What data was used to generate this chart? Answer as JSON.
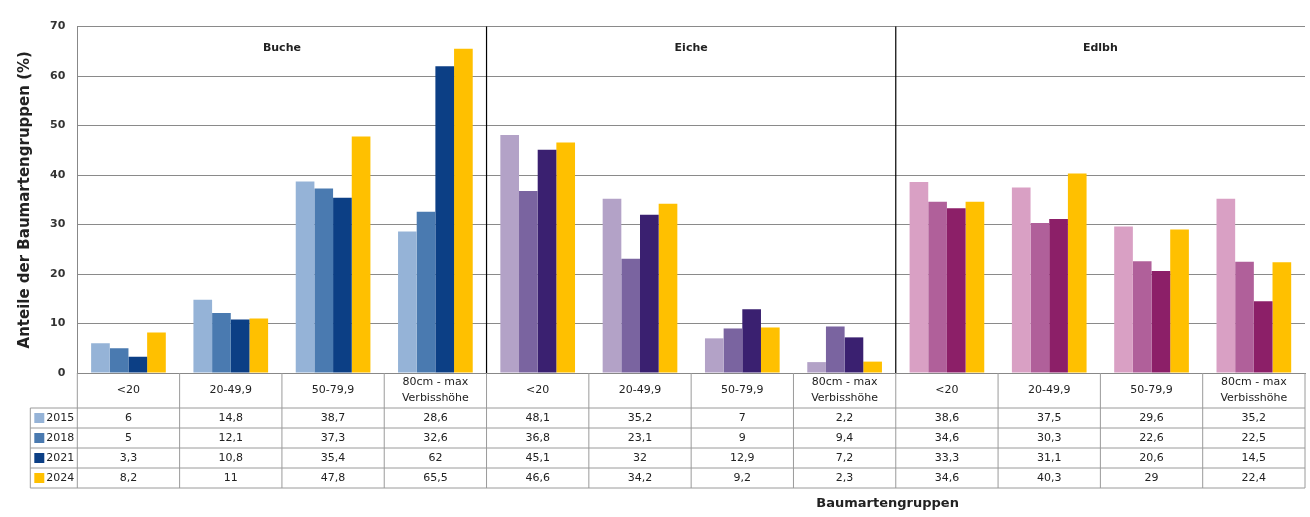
{
  "chart_data": {
    "type": "bar",
    "ylabel": "Anteile der Baumartengruppen (%)",
    "categories": [
      "<20",
      "20-49,9",
      "50-79,9",
      "80cm - max Verbisshöhe",
      "<20",
      "20-49,9",
      "50-79,9",
      "80cm - max Verbisshöhe",
      "<20",
      "20-49,9",
      "50-79,9",
      "80cm - max Verbisshöhe"
    ],
    "annotations": [
      "Buche",
      "Eiche",
      "Edlbh",
      "Baumartengruppen"
    ],
    "series": [
      {
        "name": "2015",
        "color": "#95b3d7",
        "colors": [
          "#95b3d7",
          "#95b3d7",
          "#95b3d7",
          "#95b3d7",
          "#b3a2c7",
          "#b3a2c7",
          "#b3a2c7",
          "#b3a2c7",
          "#d9a0c4",
          "#d9a0c4",
          "#d9a0c4",
          "#d9a0c4"
        ],
        "values": [
          6,
          14.8,
          38.7,
          28.6,
          48.1,
          35.2,
          7,
          2.2,
          38.6,
          37.5,
          29.6,
          35.2
        ],
        "value_labels": [
          "6",
          "14,8",
          "38,7",
          "28,6",
          "48,1",
          "35,2",
          "7",
          "2,2",
          "38,6",
          "37,5",
          "29,6",
          "35,2"
        ]
      },
      {
        "name": "2018",
        "color": "#4a7ab0",
        "colors": [
          "#4a7ab0",
          "#4a7ab0",
          "#4a7ab0",
          "#4a7ab0",
          "#7a64a0",
          "#7a64a0",
          "#7a64a0",
          "#7a64a0",
          "#b0609a",
          "#b0609a",
          "#b0609a",
          "#b0609a"
        ],
        "values": [
          5,
          12.1,
          37.3,
          32.6,
          36.8,
          23.1,
          9,
          9.4,
          34.6,
          30.3,
          22.6,
          22.5
        ],
        "value_labels": [
          "5",
          "12,1",
          "37,3",
          "32,6",
          "36,8",
          "23,1",
          "9",
          "9,4",
          "34,6",
          "30,3",
          "22,6",
          "22,5"
        ]
      },
      {
        "name": "2021",
        "color": "#0c3f85",
        "colors": [
          "#0c3f85",
          "#0c3f85",
          "#0c3f85",
          "#0c3f85",
          "#3a2070",
          "#3a2070",
          "#3a2070",
          "#3a2070",
          "#8c1f68",
          "#8c1f68",
          "#8c1f68",
          "#8c1f68"
        ],
        "values": [
          3.3,
          10.8,
          35.4,
          62,
          45.1,
          32,
          12.9,
          7.2,
          33.3,
          31.1,
          20.6,
          14.5
        ],
        "value_labels": [
          "3,3",
          "10,8",
          "35,4",
          "62",
          "45,1",
          "32",
          "12,9",
          "7,2",
          "33,3",
          "31,1",
          "20,6",
          "14,5"
        ]
      },
      {
        "name": "2024",
        "color": "#ffc000",
        "colors": [
          "#ffc000",
          "#ffc000",
          "#ffc000",
          "#ffc000",
          "#ffc000",
          "#ffc000",
          "#ffc000",
          "#ffc000",
          "#ffc000",
          "#ffc000",
          "#ffc000",
          "#ffc000"
        ],
        "values": [
          8.2,
          11,
          47.8,
          65.5,
          46.6,
          34.2,
          9.2,
          2.3,
          34.6,
          40.3,
          29,
          22.4
        ],
        "value_labels": [
          "8,2",
          "11",
          "47,8",
          "65,5",
          "46,6",
          "34,2",
          "9,2",
          "2,3",
          "34,6",
          "40,3",
          "29",
          "22,4"
        ]
      }
    ],
    "ylim": [
      0,
      70
    ],
    "yticks": [
      0,
      10,
      20,
      30,
      40,
      50,
      60,
      70
    ],
    "grid": "y",
    "legend": "bottom left"
  }
}
